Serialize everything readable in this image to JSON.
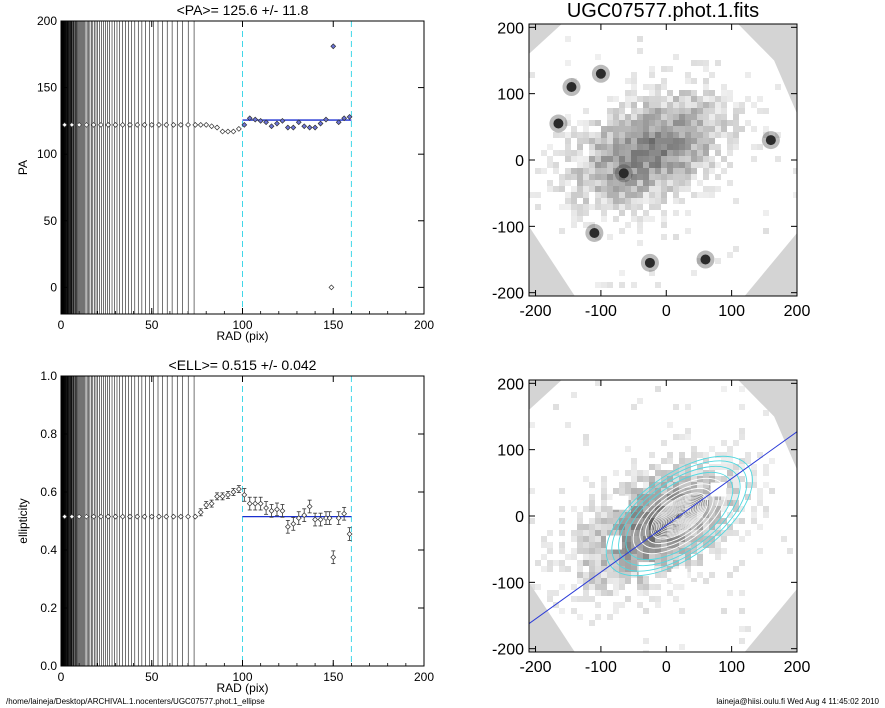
{
  "footer": {
    "left": "/home/laineja/Desktop/ARCHIVAL.1.nocenters/UGC07577.phot.1_ellipse",
    "right": "laineja@hiisi.oulu.fi  Wed Aug  4 11:45:02 2010"
  },
  "chart_data": [
    {
      "type": "scatter",
      "title": "<PA>= 125.6 +/-  11.8",
      "xlabel": "RAD (pix)",
      "ylabel": "PA",
      "xlim": [
        0,
        200
      ],
      "ylim": [
        -20,
        200
      ],
      "xticks": [
        0,
        50,
        100,
        150,
        200
      ],
      "yticks": [
        0,
        50,
        100,
        150,
        200
      ],
      "grid": false,
      "fit_range": [
        100,
        160
      ],
      "mean_line": {
        "value": 125.6,
        "x": [
          100,
          160
        ]
      },
      "points": [
        {
          "x": 2,
          "y": 122
        },
        {
          "x": 6,
          "y": 122
        },
        {
          "x": 10,
          "y": 122
        },
        {
          "x": 14,
          "y": 122
        },
        {
          "x": 18,
          "y": 122
        },
        {
          "x": 22,
          "y": 122
        },
        {
          "x": 26,
          "y": 122
        },
        {
          "x": 30,
          "y": 122
        },
        {
          "x": 34,
          "y": 122
        },
        {
          "x": 38,
          "y": 122
        },
        {
          "x": 42,
          "y": 122
        },
        {
          "x": 46,
          "y": 122
        },
        {
          "x": 50,
          "y": 122
        },
        {
          "x": 54,
          "y": 122
        },
        {
          "x": 58,
          "y": 122
        },
        {
          "x": 62,
          "y": 122
        },
        {
          "x": 66,
          "y": 122
        },
        {
          "x": 70,
          "y": 122
        },
        {
          "x": 74,
          "y": 122
        },
        {
          "x": 77,
          "y": 122
        },
        {
          "x": 80,
          "y": 122
        },
        {
          "x": 83,
          "y": 121
        },
        {
          "x": 86,
          "y": 120
        },
        {
          "x": 89,
          "y": 117
        },
        {
          "x": 92,
          "y": 117
        },
        {
          "x": 95,
          "y": 117
        },
        {
          "x": 98,
          "y": 119
        },
        {
          "x": 101,
          "y": 122
        },
        {
          "x": 104,
          "y": 127
        },
        {
          "x": 107,
          "y": 126
        },
        {
          "x": 110,
          "y": 125
        },
        {
          "x": 113,
          "y": 124
        },
        {
          "x": 116,
          "y": 121
        },
        {
          "x": 119,
          "y": 123
        },
        {
          "x": 122,
          "y": 125
        },
        {
          "x": 125,
          "y": 120
        },
        {
          "x": 128,
          "y": 120
        },
        {
          "x": 131,
          "y": 124
        },
        {
          "x": 134,
          "y": 121
        },
        {
          "x": 137,
          "y": 120
        },
        {
          "x": 140,
          "y": 120
        },
        {
          "x": 143,
          "y": 123
        },
        {
          "x": 146,
          "y": 126
        },
        {
          "x": 149,
          "y": 0
        },
        {
          "x": 150,
          "y": 181
        },
        {
          "x": 153,
          "y": 124
        },
        {
          "x": 156,
          "y": 127
        },
        {
          "x": 159,
          "y": 128
        }
      ]
    },
    {
      "type": "scatter",
      "title": "<ELL>= 0.515 +/-  0.042",
      "xlabel": "RAD (pix)",
      "ylabel": "ellipticity",
      "xlim": [
        0,
        200
      ],
      "ylim": [
        0,
        1
      ],
      "xticks": [
        0,
        50,
        100,
        150,
        200
      ],
      "yticks": [
        "0.0",
        "0.2",
        "0.4",
        "0.6",
        "0.8",
        "1.0"
      ],
      "grid": false,
      "fit_range": [
        100,
        160
      ],
      "mean_line": {
        "value": 0.515,
        "x": [
          100,
          160
        ]
      },
      "points": [
        {
          "x": 2,
          "y": 0.515
        },
        {
          "x": 6,
          "y": 0.515
        },
        {
          "x": 10,
          "y": 0.515
        },
        {
          "x": 14,
          "y": 0.515
        },
        {
          "x": 18,
          "y": 0.515
        },
        {
          "x": 22,
          "y": 0.515
        },
        {
          "x": 26,
          "y": 0.515
        },
        {
          "x": 30,
          "y": 0.515
        },
        {
          "x": 34,
          "y": 0.515
        },
        {
          "x": 38,
          "y": 0.515
        },
        {
          "x": 42,
          "y": 0.515
        },
        {
          "x": 46,
          "y": 0.515
        },
        {
          "x": 50,
          "y": 0.515
        },
        {
          "x": 54,
          "y": 0.515
        },
        {
          "x": 58,
          "y": 0.515
        },
        {
          "x": 62,
          "y": 0.515
        },
        {
          "x": 66,
          "y": 0.515
        },
        {
          "x": 70,
          "y": 0.515
        },
        {
          "x": 74,
          "y": 0.515
        },
        {
          "x": 77,
          "y": 0.53
        },
        {
          "x": 80,
          "y": 0.555
        },
        {
          "x": 83,
          "y": 0.56
        },
        {
          "x": 86,
          "y": 0.585
        },
        {
          "x": 89,
          "y": 0.585
        },
        {
          "x": 92,
          "y": 0.59
        },
        {
          "x": 95,
          "y": 0.6
        },
        {
          "x": 98,
          "y": 0.61
        },
        {
          "x": 101,
          "y": 0.59
        },
        {
          "x": 104,
          "y": 0.56
        },
        {
          "x": 107,
          "y": 0.56
        },
        {
          "x": 110,
          "y": 0.56
        },
        {
          "x": 113,
          "y": 0.545
        },
        {
          "x": 116,
          "y": 0.535
        },
        {
          "x": 119,
          "y": 0.54
        },
        {
          "x": 122,
          "y": 0.535
        },
        {
          "x": 125,
          "y": 0.48
        },
        {
          "x": 128,
          "y": 0.49
        },
        {
          "x": 131,
          "y": 0.51
        },
        {
          "x": 134,
          "y": 0.52
        },
        {
          "x": 137,
          "y": 0.55
        },
        {
          "x": 140,
          "y": 0.505
        },
        {
          "x": 143,
          "y": 0.505
        },
        {
          "x": 146,
          "y": 0.51
        },
        {
          "x": 148,
          "y": 0.51
        },
        {
          "x": 150,
          "y": 0.375
        },
        {
          "x": 153,
          "y": 0.51
        },
        {
          "x": 156,
          "y": 0.525
        },
        {
          "x": 159,
          "y": 0.455
        }
      ]
    },
    {
      "type": "heatmap",
      "title": "UGC07577.phot.1.fits",
      "xlim": [
        -210,
        200
      ],
      "ylim": [
        -205,
        205
      ],
      "xticks": [
        -200,
        -100,
        0,
        100,
        200
      ],
      "yticks": [
        -200,
        -100,
        0,
        100,
        200
      ],
      "galaxy": {
        "center": [
          -30,
          20
        ],
        "semi_major": 165,
        "semi_minor": 95,
        "angle_deg": 25
      },
      "stars": [
        [
          -100,
          130
        ],
        [
          -145,
          110
        ],
        [
          -110,
          -110
        ],
        [
          160,
          30
        ],
        [
          -25,
          -155
        ],
        [
          -65,
          -20
        ],
        [
          60,
          -150
        ],
        [
          -165,
          55
        ]
      ]
    },
    {
      "type": "heatmap",
      "title": "",
      "xlim": [
        -210,
        200
      ],
      "ylim": [
        -205,
        205
      ],
      "xticks": [
        -200,
        -100,
        0,
        100,
        200
      ],
      "yticks": [
        -200,
        -100,
        0,
        100,
        200
      ],
      "major_axis_angle_deg": 35.6,
      "isophotes": {
        "center": [
          20,
          0
        ],
        "angle_deg": 35.6,
        "semi_major": [
          50,
          60,
          70,
          82,
          95,
          108,
          120,
          130
        ],
        "ellipticity": 0.515
      },
      "masks": [
        [
          -80,
          -40
        ],
        [
          -30,
          -80
        ],
        [
          20,
          -90
        ],
        [
          80,
          40
        ],
        [
          -70,
          20
        ],
        [
          40,
          -110
        ]
      ]
    }
  ]
}
